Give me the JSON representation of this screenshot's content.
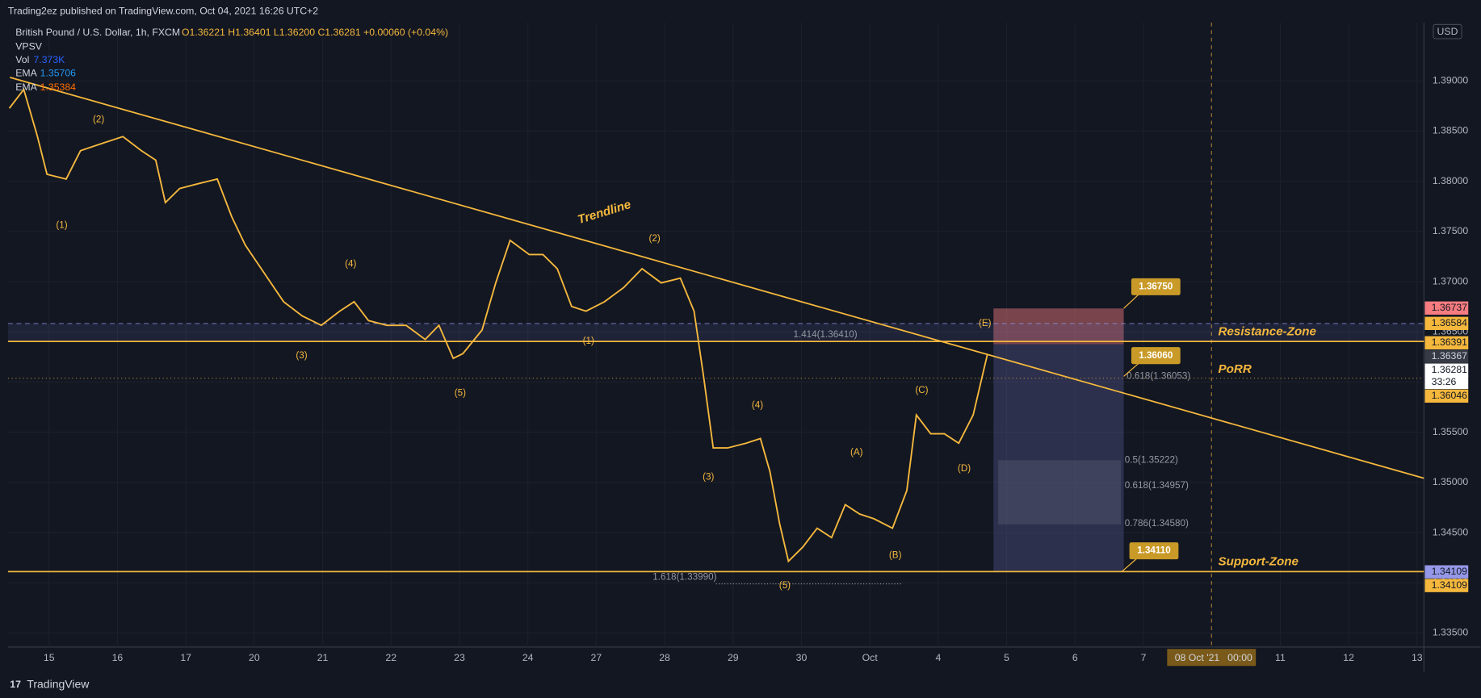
{
  "header": {
    "publisher": "Trading2ez published on TradingView.com, Oct 04, 2021 16:26 UTC+2"
  },
  "legend": {
    "symbol": "British Pound / U.S. Dollar, 1h, FXCM",
    "ohlc": "O1.36221 H1.36401 L1.36200 C1.36281 +0.00060 (+0.04%)",
    "indicators": [
      {
        "name": "VPSV"
      },
      {
        "name": "Vol",
        "value": "7.373K"
      },
      {
        "name": "EMA",
        "value": "1.35706"
      },
      {
        "name": "EMA",
        "value": "1.35384"
      }
    ]
  },
  "chart_data": {
    "type": "line",
    "color": "#f5b83d",
    "x": [
      -0.58,
      -0.37,
      -0.17,
      -0.03,
      0.25,
      0.46,
      0.66,
      0.87,
      1.08,
      1.35,
      1.56,
      1.7,
      1.91,
      2.18,
      2.46,
      2.67,
      2.87,
      3.15,
      3.43,
      3.7,
      3.98,
      4.25,
      4.46,
      4.67,
      4.94,
      5.22,
      5.5,
      5.7,
      5.91,
      6.05,
      6.33,
      6.53,
      6.74,
      7.02,
      7.22,
      7.43,
      7.64,
      7.85,
      8.12,
      8.4,
      8.67,
      8.95,
      9.23,
      9.43,
      9.57,
      9.71,
      9.92,
      10.19,
      10.4,
      10.54,
      10.68,
      10.81,
      11.02,
      11.23,
      11.44,
      11.64,
      11.85,
      12.06,
      12.33,
      12.54,
      12.68,
      12.89,
      13.09,
      13.3,
      13.51,
      13.72
    ],
    "values": [
      1.38727,
      1.38915,
      1.38445,
      1.38069,
      1.38022,
      1.38304,
      1.38351,
      1.38398,
      1.38445,
      1.38304,
      1.3821,
      1.37787,
      1.37928,
      1.37975,
      1.38022,
      1.37646,
      1.37364,
      1.37082,
      1.368,
      1.36659,
      1.36565,
      1.36706,
      1.368,
      1.36612,
      1.36565,
      1.36565,
      1.36424,
      1.36565,
      1.36236,
      1.36283,
      1.36518,
      1.36988,
      1.37411,
      1.3727,
      1.3727,
      1.37129,
      1.36753,
      1.36706,
      1.368,
      1.36941,
      1.37129,
      1.36988,
      1.37035,
      1.36706,
      1.36048,
      1.35343,
      1.35343,
      1.3539,
      1.35437,
      1.35108,
      1.34591,
      1.34215,
      1.34356,
      1.34544,
      1.3445,
      1.34779,
      1.34685,
      1.34638,
      1.34544,
      1.3492,
      1.35672,
      1.35484,
      1.35484,
      1.3539,
      1.35672,
      1.36281
    ],
    "xlim": [
      -0.6,
      20.1
    ],
    "ylim": [
      1.3336,
      1.3958
    ],
    "xticks": [
      {
        "value": 0,
        "label": "15"
      },
      {
        "value": 1,
        "label": "16"
      },
      {
        "value": 2,
        "label": "17"
      },
      {
        "value": 3,
        "label": "20"
      },
      {
        "value": 4,
        "label": "21"
      },
      {
        "value": 5,
        "label": "22"
      },
      {
        "value": 6,
        "label": "23"
      },
      {
        "value": 7,
        "label": "24"
      },
      {
        "value": 8,
        "label": "27"
      },
      {
        "value": 9,
        "label": "28"
      },
      {
        "value": 10,
        "label": "29"
      },
      {
        "value": 11,
        "label": "30"
      },
      {
        "value": 12,
        "label": "Oct"
      },
      {
        "value": 13,
        "label": "4"
      },
      {
        "value": 14,
        "label": "5"
      },
      {
        "value": 15,
        "label": "6"
      },
      {
        "value": 16,
        "label": "7"
      },
      {
        "value": 18,
        "label": "11"
      },
      {
        "value": 19,
        "label": "12"
      },
      {
        "value": 20,
        "label": "13"
      }
    ],
    "yticks": [
      {
        "value": 1.39,
        "label": "1.39000"
      },
      {
        "value": 1.385,
        "label": "1.38500"
      },
      {
        "value": 1.38,
        "label": "1.38000"
      },
      {
        "value": 1.375,
        "label": "1.37500"
      },
      {
        "value": 1.37,
        "label": "1.37000"
      },
      {
        "value": 1.365,
        "label": "1.36500"
      },
      {
        "value": 1.36,
        "label": "1.36000"
      },
      {
        "value": 1.355,
        "label": "1.35500"
      },
      {
        "value": 1.35,
        "label": "1.35000"
      },
      {
        "value": 1.345,
        "label": "1.34500"
      },
      {
        "value": 1.34,
        "label": "1.34000"
      },
      {
        "value": 1.335,
        "label": "1.33500"
      }
    ],
    "grid": true,
    "currency": "USD",
    "countdown": "33:26",
    "crosshair": {
      "date": "08 Oct '21",
      "time": "00:00"
    },
    "price_tags": [
      {
        "value": 1.36737,
        "color": "#f77c80"
      },
      {
        "value": 1.36584,
        "color": "#f5b83d"
      },
      {
        "value": 1.36391,
        "color": "#f5b83d"
      },
      {
        "value": 1.36367,
        "color": "#363a45"
      },
      {
        "value": 1.36281,
        "color": "#ffffff"
      },
      {
        "value": 1.36046,
        "color": "#f5b83d"
      },
      {
        "value": 1.34109,
        "color": "#9598e8"
      },
      {
        "value": 1.34109,
        "color": "#f5b83d"
      }
    ],
    "zone_labels": [
      "Trendline",
      "Resistance-Zone",
      "PoRR",
      "Support-Zone"
    ],
    "wave_labels": [
      "(1)",
      "(2)",
      "(3)",
      "(4)",
      "(5)",
      "(1)",
      "(2)",
      "(3)",
      "(4)",
      "(5)",
      "(A)",
      "(B)",
      "(C)",
      "(D)",
      "(E)"
    ],
    "fib_labels": [
      "1.414(1.36410)",
      "0.618(1.36053)",
      "0.5(1.35222)",
      "0.618(1.34957)",
      "0.786(1.34580)",
      "1.618(1.33990)"
    ],
    "callouts": [
      "1.36750",
      "1.36060",
      "1.34110"
    ]
  },
  "footer": {
    "brand": "TradingView"
  }
}
